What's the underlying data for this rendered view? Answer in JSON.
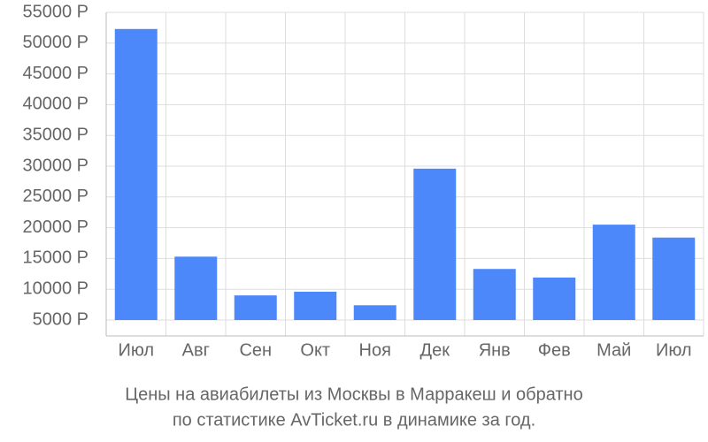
{
  "chart_data": {
    "type": "bar",
    "title": "Цены на авиабилеты из Москвы в Марракеш и обратно",
    "subtitle": "по статистике AvTicket.ru в динамике за год.",
    "categories": [
      "Июл",
      "Авг",
      "Сен",
      "Окт",
      "Ноя",
      "Дек",
      "Янв",
      "Фев",
      "Май",
      "Июл"
    ],
    "values": [
      52300,
      15300,
      9000,
      9600,
      7400,
      29600,
      13300,
      11900,
      20500,
      18400
    ],
    "color": "#4d88fb",
    "ylim": [
      5000,
      55000
    ],
    "yticks": [
      {
        "value": 5000,
        "label": "5000 Р"
      },
      {
        "value": 10000,
        "label": "10000 Р"
      },
      {
        "value": 15000,
        "label": "15000 Р"
      },
      {
        "value": 20000,
        "label": "20000 Р"
      },
      {
        "value": 25000,
        "label": "25000 Р"
      },
      {
        "value": 30000,
        "label": "30000 Р"
      },
      {
        "value": 35000,
        "label": "35000 Р"
      },
      {
        "value": 40000,
        "label": "40000 Р"
      },
      {
        "value": 45000,
        "label": "45000 Р"
      },
      {
        "value": 50000,
        "label": "50000 Р"
      },
      {
        "value": 55000,
        "label": "55000 Р"
      }
    ],
    "grid": true
  }
}
